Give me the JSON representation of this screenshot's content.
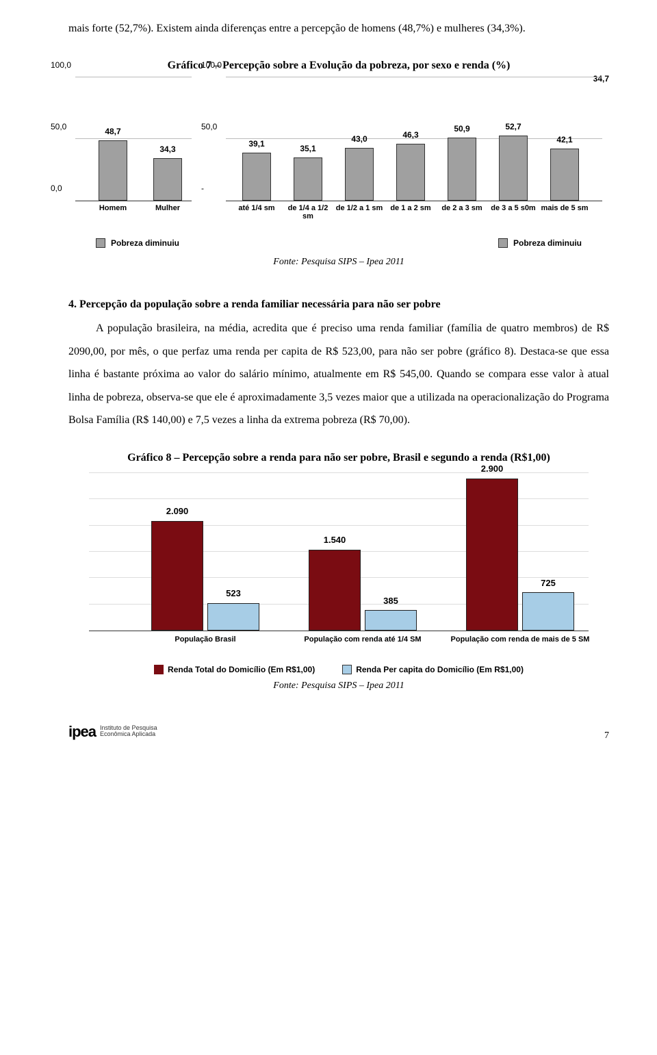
{
  "intro_paragraph": "mais forte (52,7%). Existem ainda diferenças entre a percepção de homens (48,7%) e mulheres (34,3%).",
  "chart7": {
    "type": "bar",
    "title": "Gráfico 7 – Percepção sobre a Evolução da pobreza, por sexo e renda (%)",
    "outlier_label": "34,7",
    "ylim": [
      0,
      100
    ],
    "ytick_step": 50,
    "yticks_left": [
      "0,0",
      "50,0",
      "100,0"
    ],
    "yticks_right": [
      "-",
      "50,0",
      "100,0"
    ],
    "grid_color": "#bbbbbb",
    "bar_color": "#a0a0a0",
    "bar_border": "#333333",
    "left": {
      "categories": [
        "Homem",
        "Mulher"
      ],
      "labels": [
        "48,7",
        "34,3"
      ],
      "values": [
        48.7,
        34.3
      ]
    },
    "right": {
      "categories": [
        "até 1/4 sm",
        "de 1/4 a 1/2 sm",
        "de 1/2 a 1 sm",
        "de 1 a 2 sm",
        "de 2 a 3 sm",
        "de 3 a 5 s0m",
        "mais de 5 sm"
      ],
      "labels": [
        "39,1",
        "35,1",
        "43,0",
        "46,3",
        "50,9",
        "52,7",
        "42,1"
      ],
      "values": [
        39.1,
        35.1,
        43.0,
        46.3,
        50.9,
        52.7,
        42.1
      ]
    },
    "legend_left": "Pobreza diminuiu",
    "legend_right": "Pobreza diminuiu",
    "source": "Fonte: Pesquisa SIPS – Ipea 2011"
  },
  "section4": {
    "heading": "4. Percepção da população sobre a renda familiar necessária para não ser pobre",
    "body": "A população brasileira, na média, acredita que é preciso uma renda familiar (família de quatro membros) de R$ 2090,00, por mês, o que perfaz uma renda per capita de R$ 523,00, para não ser pobre (gráfico 8). Destaca-se que essa linha é bastante próxima ao valor do salário mínimo, atualmente em R$ 545,00. Quando se compara esse valor à atual linha de pobreza, observa-se que ele é aproximadamente 3,5 vezes maior que a utilizada na operacionalização do Programa Bolsa Família (R$ 140,00) e 7,5 vezes a linha da extrema pobreza (R$ 70,00)."
  },
  "chart8": {
    "type": "bar",
    "title": "Gráfico 8 – Percepção sobre a renda para não ser pobre, Brasil e segundo a renda (R$1,00)",
    "ylim": [
      0,
      3000
    ],
    "grid_color": "#dddddd",
    "colors": {
      "total": "#7a0c12",
      "percapita": "#a7cde6"
    },
    "groups": [
      {
        "category": "População Brasil",
        "total": 2090,
        "total_label": "2.090",
        "percapita": 523,
        "percapita_label": "523"
      },
      {
        "category": "População com renda até 1/4 SM",
        "total": 1540,
        "total_label": "1.540",
        "percapita": 385,
        "percapita_label": "385"
      },
      {
        "category": "População com renda de mais de 5 SM",
        "total": 2900,
        "total_label": "2.900",
        "percapita": 725,
        "percapita_label": "725"
      }
    ],
    "legend": {
      "total": "Renda Total do Domicílio (Em R$1,00)",
      "percapita": "Renda Per capita do Domicílio (Em R$1,00)"
    },
    "source": "Fonte: Pesquisa SIPS – Ipea 2011"
  },
  "footer": {
    "logo_mark": "ipea",
    "logo_text": "Instituto de Pesquisa\nEconômica Aplicada",
    "page_number": "7"
  }
}
